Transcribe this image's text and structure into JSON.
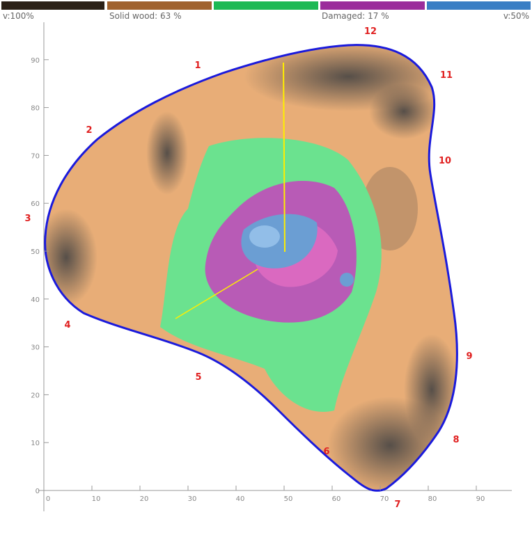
{
  "legend": {
    "items": [
      "v:100%",
      "Solid wood: 63 %",
      "Damaged: 17 %",
      "v:50%"
    ]
  },
  "axes": {
    "x_ticks": [
      "0",
      "10",
      "20",
      "30",
      "40",
      "50",
      "60",
      "70",
      "80",
      "90"
    ],
    "y_ticks": [
      "0",
      "10",
      "20",
      "30",
      "40",
      "50",
      "60",
      "70",
      "80",
      "90"
    ]
  },
  "sensors": [
    "1",
    "2",
    "3",
    "4",
    "5",
    "6",
    "7",
    "8",
    "9",
    "10",
    "11",
    "12"
  ]
}
